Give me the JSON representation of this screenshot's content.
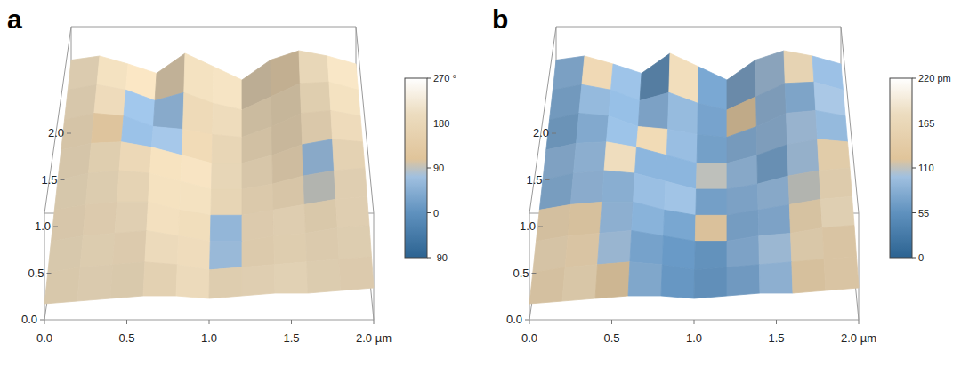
{
  "chart_data": [
    {
      "type": "surface",
      "title": "a",
      "xlim": [
        0,
        2
      ],
      "ylim": [
        0,
        2
      ],
      "xticks": [
        {
          "value": 0,
          "label": "0.0"
        },
        0.5,
        {
          "value": 1,
          "label": "1.0"
        },
        1.5,
        {
          "value": 2,
          "label": "2.0 µm"
        }
      ],
      "yticks": [
        {
          "value": 0,
          "label": "0.0"
        },
        0.5,
        {
          "value": 1,
          "label": "1.0"
        },
        1.5,
        {
          "value": 2,
          "label": "2.0"
        }
      ],
      "z": [
        [
          55,
          58,
          52,
          45,
          60,
          50,
          40,
          55,
          62,
          58,
          52
        ],
        [
          50,
          54,
          50,
          42,
          48,
          40,
          35,
          45,
          55,
          56,
          50
        ],
        [
          45,
          50,
          48,
          40,
          38,
          34,
          32,
          40,
          50,
          52,
          48
        ],
        [
          40,
          45,
          46,
          42,
          36,
          30,
          30,
          36,
          44,
          48,
          46
        ],
        [
          35,
          40,
          42,
          40,
          34,
          28,
          28,
          32,
          38,
          42,
          44
        ],
        [
          30,
          34,
          36,
          36,
          30,
          26,
          26,
          30,
          34,
          38,
          40
        ],
        [
          24,
          28,
          30,
          32,
          28,
          24,
          24,
          28,
          30,
          34,
          36
        ],
        [
          18,
          22,
          24,
          26,
          24,
          20,
          22,
          24,
          26,
          28,
          30
        ],
        [
          12,
          14,
          16,
          18,
          18,
          16,
          18,
          20,
          20,
          22,
          24
        ]
      ],
      "cells": [
        [
          190,
          185,
          180,
          175,
          185,
          190,
          180,
          150,
          185,
          190
        ],
        [
          185,
          180,
          60,
          55,
          170,
          185,
          180,
          175,
          180,
          185
        ],
        [
          180,
          120,
          55,
          70,
          160,
          180,
          175,
          170,
          175,
          180
        ],
        [
          185,
          180,
          170,
          175,
          180,
          185,
          180,
          170,
          60,
          180
        ],
        [
          190,
          185,
          180,
          180,
          185,
          180,
          175,
          175,
          90,
          185
        ],
        [
          185,
          180,
          185,
          180,
          175,
          60,
          180,
          185,
          180,
          185
        ],
        [
          190,
          185,
          180,
          185,
          180,
          70,
          175,
          180,
          185,
          190
        ],
        [
          185,
          190,
          185,
          180,
          185,
          180,
          185,
          190,
          185,
          180
        ]
      ],
      "colorbar_lim": [
        -90,
        270
      ],
      "colorbar_ticks": [
        {
          "value": 270,
          "label": "270 °"
        },
        180,
        90,
        0,
        -90
      ]
    },
    {
      "type": "surface",
      "title": "b",
      "xlim": [
        0,
        2
      ],
      "ylim": [
        0,
        2
      ],
      "xticks": [
        {
          "value": 0,
          "label": "0.0"
        },
        0.5,
        {
          "value": 1,
          "label": "1.0"
        },
        1.5,
        {
          "value": 2,
          "label": "2.0 µm"
        }
      ],
      "yticks": [
        {
          "value": 0,
          "label": "0.0"
        },
        0.5,
        {
          "value": 1,
          "label": "1.0"
        },
        1.5,
        {
          "value": 2,
          "label": "2.0"
        }
      ],
      "z": [
        [
          55,
          58,
          52,
          45,
          60,
          50,
          40,
          55,
          62,
          58,
          52
        ],
        [
          50,
          54,
          50,
          42,
          48,
          40,
          35,
          45,
          55,
          56,
          50
        ],
        [
          45,
          50,
          48,
          40,
          38,
          34,
          32,
          40,
          50,
          52,
          48
        ],
        [
          40,
          45,
          46,
          42,
          36,
          30,
          30,
          36,
          44,
          48,
          46
        ],
        [
          35,
          40,
          42,
          40,
          34,
          28,
          28,
          32,
          38,
          42,
          44
        ],
        [
          30,
          34,
          36,
          36,
          30,
          26,
          26,
          30,
          34,
          38,
          40
        ],
        [
          24,
          28,
          30,
          32,
          28,
          24,
          24,
          28,
          30,
          34,
          36
        ],
        [
          18,
          22,
          24,
          26,
          24,
          20,
          22,
          24,
          26,
          28,
          30
        ],
        [
          12,
          14,
          16,
          18,
          18,
          16,
          18,
          20,
          20,
          22,
          24
        ]
      ],
      "cells": [
        [
          80,
          150,
          90,
          60,
          160,
          70,
          80,
          100,
          160,
          90
        ],
        [
          75,
          90,
          85,
          80,
          90,
          70,
          120,
          90,
          80,
          100
        ],
        [
          70,
          80,
          90,
          150,
          90,
          70,
          80,
          90,
          100,
          90
        ],
        [
          85,
          90,
          170,
          80,
          80,
          110,
          90,
          70,
          100,
          150
        ],
        [
          80,
          90,
          85,
          90,
          95,
          70,
          80,
          90,
          110,
          160
        ],
        [
          150,
          140,
          90,
          80,
          70,
          120,
          75,
          80,
          150,
          170
        ],
        [
          160,
          150,
          100,
          70,
          60,
          60,
          80,
          100,
          160,
          150
        ],
        [
          150,
          160,
          120,
          80,
          60,
          60,
          70,
          90,
          140,
          150
        ]
      ],
      "colorbar_lim": [
        0,
        220
      ],
      "colorbar_ticks": [
        {
          "value": 220,
          "label": "220 pm"
        },
        165,
        110,
        55,
        0
      ]
    }
  ]
}
